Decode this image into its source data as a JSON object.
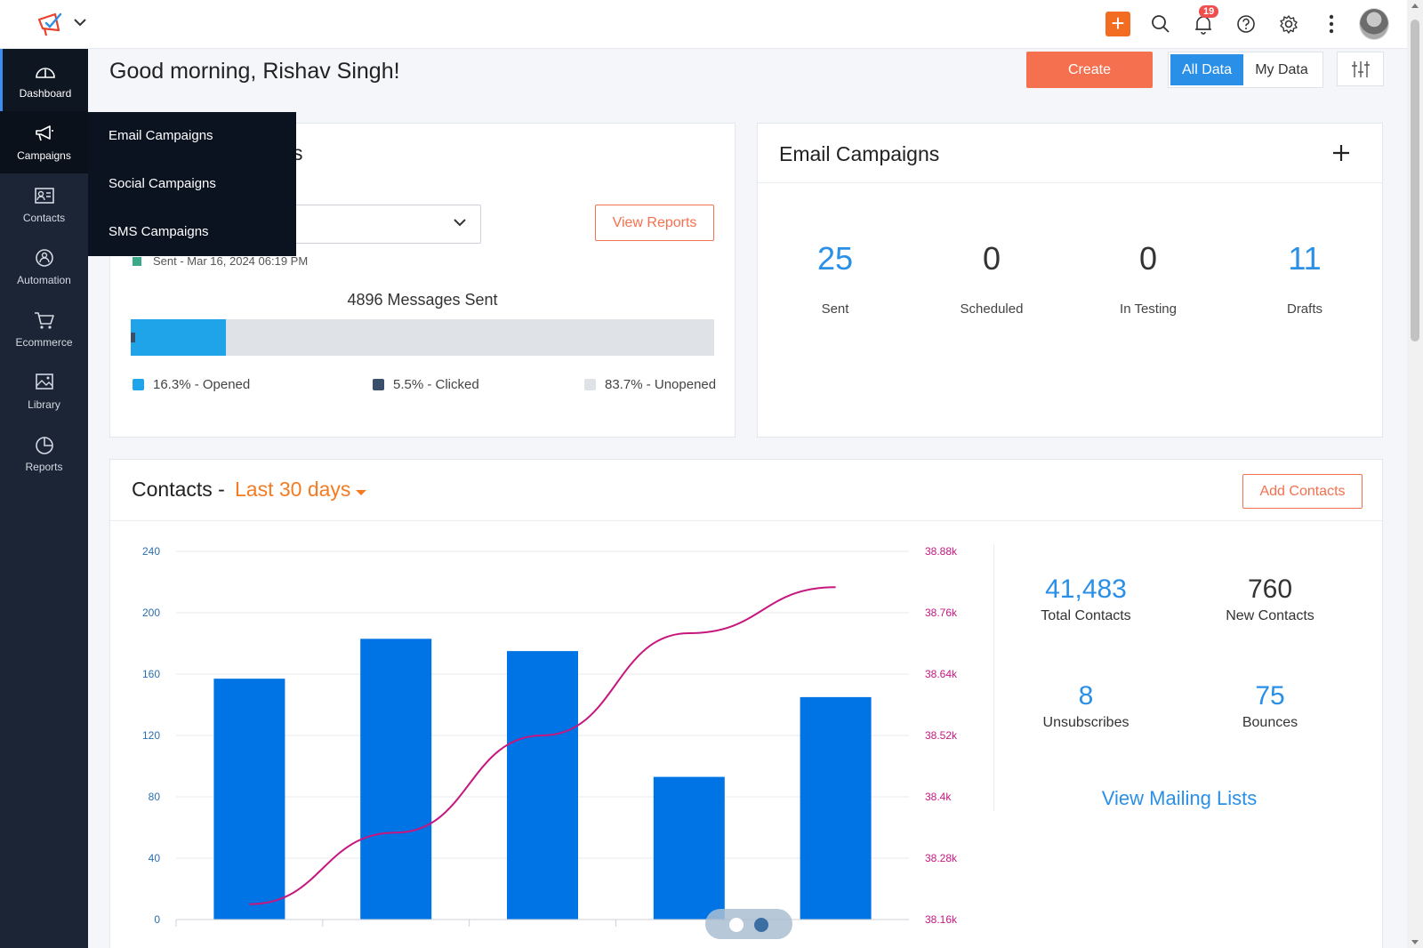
{
  "header": {
    "notifications_count": "19",
    "icons": [
      "campaigns-logo-icon",
      "chevron-down-icon",
      "quick-add-icon",
      "search-icon",
      "bell-icon",
      "help-icon",
      "gear-icon",
      "more-vertical-icon",
      "avatar"
    ]
  },
  "sidebar": {
    "items": [
      {
        "label": "Dashboard",
        "icon": "gauge-icon"
      },
      {
        "label": "Campaigns",
        "icon": "megaphone-icon"
      },
      {
        "label": "Contacts",
        "icon": "contact-card-icon"
      },
      {
        "label": "Automation",
        "icon": "automation-icon"
      },
      {
        "label": "Ecommerce",
        "icon": "cart-icon"
      },
      {
        "label": "Library",
        "icon": "image-gallery-icon"
      },
      {
        "label": "Reports",
        "icon": "pie-chart-icon"
      }
    ]
  },
  "flyout": {
    "items": [
      "Email Campaigns",
      "Social Campaigns",
      "SMS Campaigns"
    ]
  },
  "greeting": "Good morning, Rishav Singh!",
  "actions": {
    "create": "Create",
    "all_data": "All Data",
    "my_data": "My Data"
  },
  "recent_campaign": {
    "title_fragment": "s",
    "view_reports": "View Reports",
    "sent_date": "Sent - Mar 16, 2024 06:19 PM",
    "messages_sent": "4896 Messages Sent",
    "opened_pct": 16.3,
    "clicked_pct": 5.5,
    "legend": {
      "opened": "16.3% - Opened",
      "clicked": "5.5% - Clicked",
      "unopened": "83.7% - Unopened"
    }
  },
  "email_campaigns": {
    "title": "Email Campaigns",
    "stats": [
      {
        "value": "25",
        "label": "Sent"
      },
      {
        "value": "0",
        "label": "Scheduled"
      },
      {
        "value": "0",
        "label": "In Testing"
      },
      {
        "value": "11",
        "label": "Drafts"
      }
    ]
  },
  "contacts": {
    "title": "Contacts -",
    "range": "Last 30 days",
    "add_contacts": "Add Contacts",
    "total_contacts": "41,483",
    "total_contacts_label": "Total Contacts",
    "new_contacts": "760",
    "new_contacts_label": "New Contacts",
    "unsubscribes": "8",
    "unsubscribes_label": "Unsubscribes",
    "bounces": "75",
    "bounces_label": "Bounces",
    "view_mailing_lists": "View Mailing Lists"
  },
  "chart_data": {
    "type": "bar",
    "bar_color": "#0074e4",
    "line_color": "#c7177f",
    "y_left_ticks": [
      "240",
      "200",
      "160",
      "120",
      "80",
      "40",
      "0"
    ],
    "y_right_ticks": [
      "38.88k",
      "38.76k",
      "38.64k",
      "38.52k",
      "38.4k",
      "38.28k",
      "38.16k"
    ],
    "ylim_left": [
      0,
      240
    ],
    "ylim_right": [
      38160,
      38880
    ],
    "series": [
      {
        "type": "bar",
        "values": [
          157,
          183,
          175,
          93,
          145
        ]
      },
      {
        "type": "line",
        "values": [
          38190,
          38330,
          38520,
          38720,
          38810
        ]
      }
    ]
  }
}
